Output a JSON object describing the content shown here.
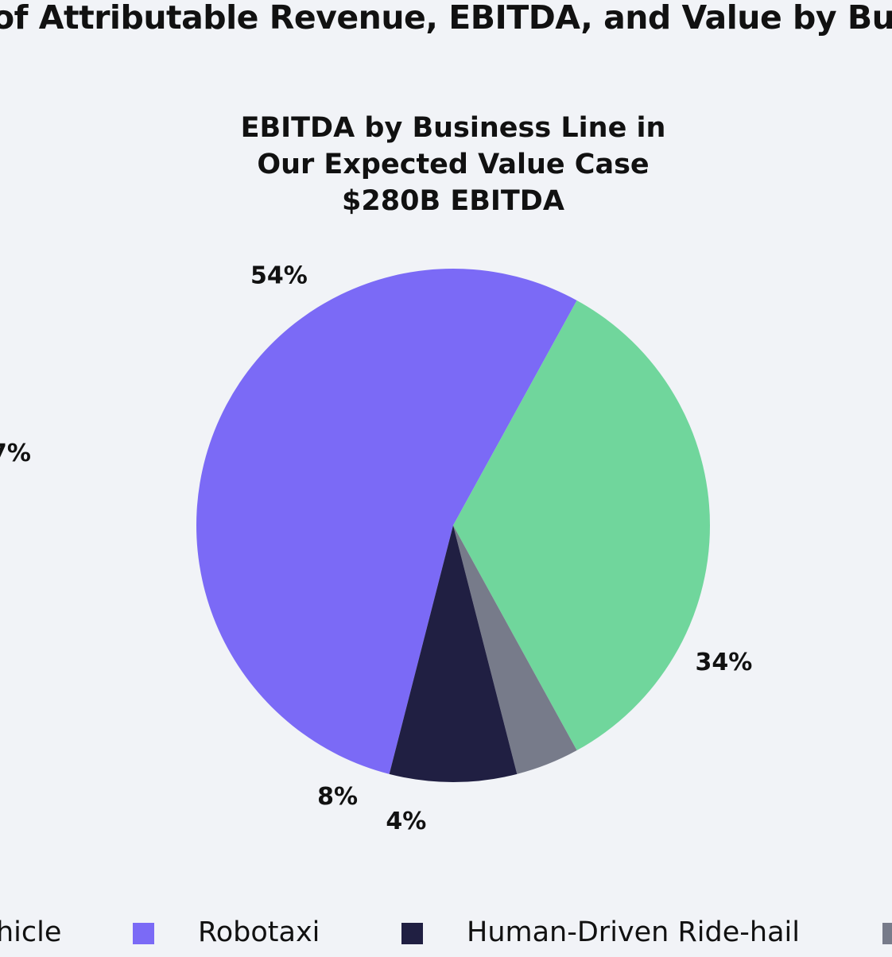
{
  "page": {
    "main_title": "of Attributable Revenue, EBITDA, and Value by Busi",
    "left_chart_partial_label": "7%"
  },
  "chart_data": {
    "type": "pie",
    "title_lines": [
      "EBITDA by Business Line in",
      "Our Expected Value Case",
      "$280B EBITDA"
    ],
    "slices": [
      {
        "label": "Robotaxi",
        "value": 54,
        "display": "54%",
        "color": "#7b6af6"
      },
      {
        "label": "",
        "value": 34,
        "display": "34%",
        "color": "#70d69c"
      },
      {
        "label": "",
        "value": 4,
        "display": "4%",
        "color": "#777b8a"
      },
      {
        "label": "Human-Driven Ride-hail",
        "value": 8,
        "display": "8%",
        "color": "#201f42"
      }
    ],
    "legend": [
      {
        "label": "hicle",
        "color": ""
      },
      {
        "label": "Robotaxi",
        "color": "#7b6af6"
      },
      {
        "label": "Human-Driven Ride-hail",
        "color": "#201f42"
      },
      {
        "label": "",
        "color": "#777b8a"
      }
    ],
    "legend_position": "bottom"
  }
}
